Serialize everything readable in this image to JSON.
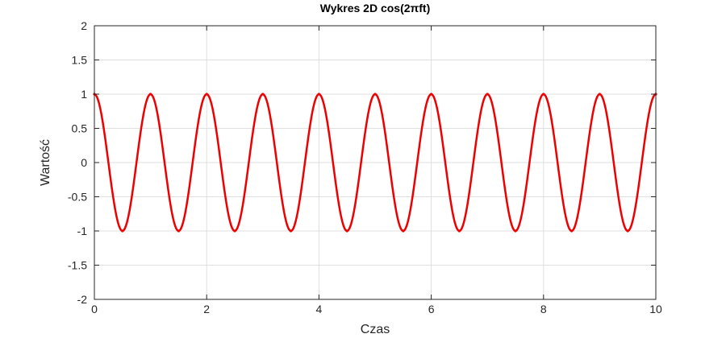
{
  "chart_data": {
    "type": "line",
    "title": "Wykres 2D cos(2πft)",
    "xlabel": "Czas",
    "ylabel": "Wartość",
    "xlim": [
      0,
      10
    ],
    "ylim": [
      -2,
      2
    ],
    "x_ticks": [
      0,
      2,
      4,
      6,
      8,
      10
    ],
    "x_tick_labels": [
      "0",
      "2",
      "4",
      "6",
      "8",
      "10"
    ],
    "y_ticks": [
      -2,
      -1.5,
      -1,
      -0.5,
      0,
      0.5,
      1,
      1.5,
      2
    ],
    "y_tick_labels": [
      "-2",
      "-1.5",
      "-1",
      "-0.5",
      "0",
      "0.5",
      "1",
      "1.5",
      "2"
    ],
    "grid": true,
    "series": [
      {
        "color": "#ee0000",
        "x": [
          0,
          0.5,
          1,
          1.5,
          2,
          2.5,
          3,
          3.5,
          4,
          4.5,
          5,
          5.5,
          6,
          6.5,
          7,
          7.5,
          8,
          8.5,
          9,
          9.5,
          10
        ],
        "values": [
          1,
          -1,
          1,
          -1,
          1,
          -1,
          1,
          -1,
          1,
          -1,
          1,
          -1,
          1,
          -1,
          1,
          -1,
          1,
          -1,
          1,
          -1,
          1
        ]
      }
    ]
  }
}
